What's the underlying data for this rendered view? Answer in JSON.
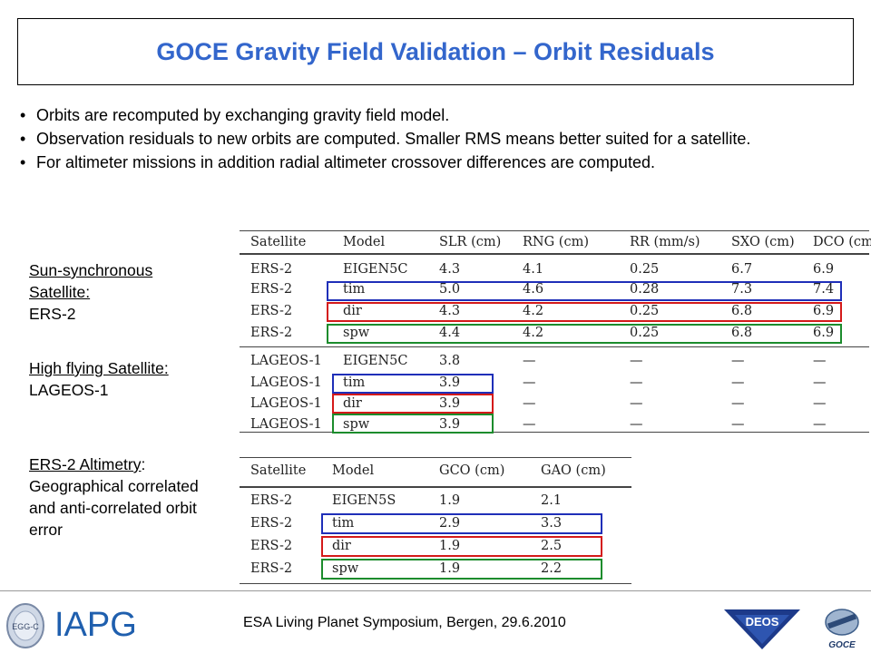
{
  "title": "GOCE Gravity Field Validation – Orbit Residuals",
  "bullets": [
    "Orbits are recomputed by exchanging gravity field model.",
    "Observation residuals to new orbits are computed. Smaller RMS means better suited for a satellite.",
    "For altimeter missions in addition radial altimeter crossover differences are computed."
  ],
  "side": {
    "sunsync_title": "Sun-synchronous Satellite:",
    "sunsync_sat": "ERS-2",
    "high_title": "High flying Satellite:",
    "high_sat": "LAGEOS-1",
    "alt_title": "ERS-2 Altimetry",
    "alt_colon": ":",
    "alt_desc": "Geographical correlated and anti-correlated orbit error"
  },
  "table1": {
    "headers": [
      "Satellite",
      "Model",
      "SLR (cm)",
      "RNG (cm)",
      "RR (mm/s)",
      "SXO (cm)",
      "DCO (cm)"
    ],
    "rows": [
      [
        "ERS-2",
        "EIGEN5C",
        "4.3",
        "4.1",
        "0.25",
        "6.7",
        "6.9"
      ],
      [
        "ERS-2",
        "tim",
        "5.0",
        "4.6",
        "0.28",
        "7.3",
        "7.4"
      ],
      [
        "ERS-2",
        "dir",
        "4.3",
        "4.2",
        "0.25",
        "6.8",
        "6.9"
      ],
      [
        "ERS-2",
        "spw",
        "4.4",
        "4.2",
        "0.25",
        "6.8",
        "6.9"
      ],
      [
        "LAGEOS-1",
        "EIGEN5C",
        "3.8",
        "—",
        "—",
        "—",
        "—"
      ],
      [
        "LAGEOS-1",
        "tim",
        "3.9",
        "—",
        "—",
        "—",
        "—"
      ],
      [
        "LAGEOS-1",
        "dir",
        "3.9",
        "—",
        "—",
        "—",
        "—"
      ],
      [
        "LAGEOS-1",
        "spw",
        "3.9",
        "—",
        "—",
        "—",
        "—"
      ]
    ]
  },
  "table2": {
    "headers": [
      "Satellite",
      "Model",
      "GCO (cm)",
      "GAO (cm)"
    ],
    "rows": [
      [
        "ERS-2",
        "EIGEN5S",
        "1.9",
        "2.1"
      ],
      [
        "ERS-2",
        "tim",
        "2.9",
        "3.3"
      ],
      [
        "ERS-2",
        "dir",
        "1.9",
        "2.5"
      ],
      [
        "ERS-2",
        "spw",
        "1.9",
        "2.2"
      ]
    ]
  },
  "footer": {
    "text": "ESA Living Planet Symposium, Bergen, 29.6.2010",
    "iapg": "IAPG",
    "deos": "DEOS",
    "goce": "GOCE",
    "egg": "EGG-C"
  },
  "colors": {
    "title": "#3366cc",
    "tim_box": "#1f2fb8",
    "dir_box": "#d41a1a",
    "spw_box": "#1c8c2c",
    "iapg": "#1f5fae"
  }
}
